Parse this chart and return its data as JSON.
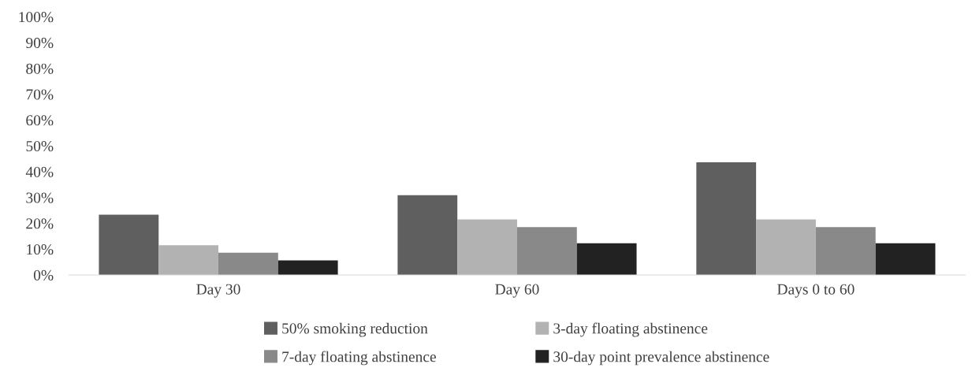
{
  "chart_data": {
    "type": "bar",
    "categories": [
      "Day 30",
      "Day 60",
      "Days 0 to 60"
    ],
    "series": [
      {
        "name": "50% smoking reduction",
        "color": "#5f5f5f",
        "values": [
          23.3,
          30.9,
          43.6
        ]
      },
      {
        "name": "3-day floating abstinence",
        "color": "#b2b2b2",
        "values": [
          11.5,
          21.5,
          21.5
        ]
      },
      {
        "name": "7-day floating abstinence",
        "color": "#898989",
        "values": [
          8.6,
          18.5,
          18.5
        ]
      },
      {
        "name": "30-day point prevalence abstinence",
        "color": "#222222",
        "values": [
          5.6,
          12.3,
          12.3
        ]
      }
    ],
    "ylim": [
      0,
      100
    ],
    "yticks": [
      {
        "value": 0,
        "label": "0%"
      },
      {
        "value": 10,
        "label": "10%"
      },
      {
        "value": 20,
        "label": "20%"
      },
      {
        "value": 30,
        "label": "30%"
      },
      {
        "value": 40,
        "label": "40%"
      },
      {
        "value": 50,
        "label": "50%"
      },
      {
        "value": 60,
        "label": "60%"
      },
      {
        "value": 70,
        "label": "70%"
      },
      {
        "value": 80,
        "label": "80%"
      },
      {
        "value": 90,
        "label": "90%"
      },
      {
        "value": 100,
        "label": "100%"
      }
    ],
    "grid": false,
    "legend": "bottom"
  }
}
